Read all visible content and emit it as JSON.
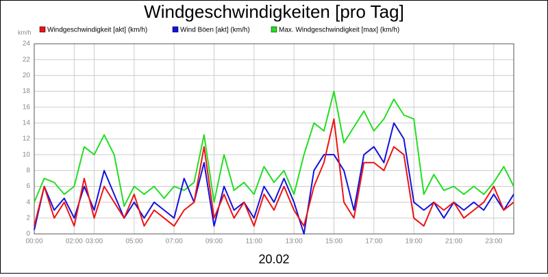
{
  "chart_data": {
    "type": "line",
    "title": "Windgeschwindigkeiten [pro Tag]",
    "y_unit": "km/h",
    "x_label": "20.02",
    "x": [
      0,
      0.5,
      1,
      1.5,
      2,
      2.5,
      3,
      3.5,
      4,
      4.5,
      5,
      5.5,
      6,
      6.5,
      7,
      7.5,
      8,
      8.5,
      9,
      9.5,
      10,
      10.5,
      11,
      11.5,
      12,
      12.5,
      13,
      13.5,
      14,
      14.5,
      15,
      15.5,
      16,
      16.5,
      17,
      17.5,
      18,
      18.5,
      19,
      19.5,
      20,
      20.5,
      21,
      21.5,
      22,
      22.5,
      23,
      23.5,
      24
    ],
    "xlim": [
      0,
      24
    ],
    "xticks": [
      {
        "value": 0,
        "label": "00:00"
      },
      {
        "value": 2,
        "label": "02:00"
      },
      {
        "value": 3,
        "label": "03:00"
      },
      {
        "value": 5,
        "label": "05:00"
      },
      {
        "value": 7,
        "label": "07:00"
      },
      {
        "value": 9,
        "label": "09:00"
      },
      {
        "value": 11,
        "label": "11:00"
      },
      {
        "value": 13,
        "label": "13:00"
      },
      {
        "value": 15,
        "label": "15:00"
      },
      {
        "value": 17,
        "label": "17:00"
      },
      {
        "value": 19,
        "label": "19:00"
      },
      {
        "value": 21,
        "label": "21:00"
      },
      {
        "value": 23,
        "label": "23:00"
      }
    ],
    "ylim": [
      0,
      24
    ],
    "yticks": [
      0,
      2,
      4,
      6,
      8,
      10,
      12,
      14,
      16,
      18,
      20,
      22,
      24
    ],
    "grid": true,
    "series": [
      {
        "name": "Windgeschwindigkeit [akt] (km/h)",
        "color": "#ee1111",
        "values": [
          1,
          6,
          2,
          4,
          1,
          7,
          2,
          6,
          4,
          2,
          5,
          1,
          3,
          2,
          1,
          3,
          4,
          11,
          2,
          5,
          2,
          4,
          1,
          5,
          3,
          6,
          3,
          1,
          6,
          9,
          14.5,
          4,
          2,
          9,
          9,
          8,
          11,
          10,
          2,
          1,
          4,
          3,
          4,
          2,
          3,
          4,
          6,
          3,
          4
        ]
      },
      {
        "name": "Wind Böen [akt] (km/h)",
        "color": "#1111dd",
        "values": [
          0.5,
          6,
          3,
          4.5,
          2,
          6,
          3,
          8,
          5,
          2,
          4,
          2,
          4,
          3,
          2,
          7,
          4,
          9,
          1,
          6,
          3,
          4,
          2,
          6,
          4,
          7,
          4,
          0,
          8,
          10,
          10,
          8,
          3,
          10,
          11,
          9,
          14,
          12,
          4,
          3,
          4,
          2,
          4,
          3,
          4,
          3,
          5,
          3,
          5
        ]
      },
      {
        "name": "Max. Windgeschwindigkeit [max] (km/h)",
        "color": "#22dd22",
        "values": [
          4,
          7,
          6.5,
          5,
          6,
          11,
          10,
          12.5,
          10,
          3.5,
          6,
          5,
          6,
          4.5,
          6,
          5.5,
          6.5,
          12.5,
          4,
          10,
          5.5,
          6.5,
          5,
          8.5,
          6.5,
          8,
          5,
          10,
          14,
          13,
          18,
          11.5,
          13.5,
          15.5,
          13,
          14.5,
          17,
          15,
          14.5,
          5,
          7.5,
          5.5,
          6,
          5,
          6,
          5,
          6.5,
          8.5,
          6
        ]
      }
    ]
  }
}
